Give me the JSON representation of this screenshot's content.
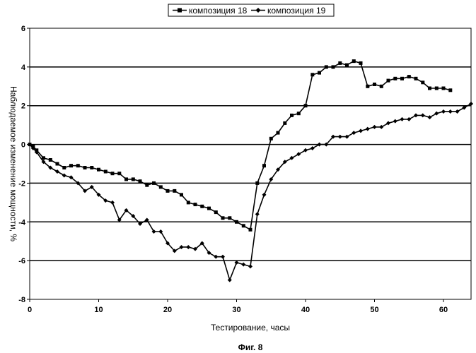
{
  "caption": "Фиг. 8",
  "chart_data": {
    "type": "line",
    "xlabel": "Тестирование, часы",
    "ylabel": "Наблюдаемое изменение мощности, %",
    "xlim": [
      0,
      64
    ],
    "ylim": [
      -8,
      6
    ],
    "xticks": [
      0,
      10,
      20,
      30,
      40,
      50,
      60
    ],
    "yticks": [
      -8,
      -6,
      -4,
      -2,
      0,
      2,
      4,
      6
    ],
    "ytick_labels": [
      "-8",
      "-6",
      "-4",
      "-2",
      "0",
      "2",
      "4",
      "6"
    ],
    "xtick_labels": [
      "0",
      "10",
      "20",
      "30",
      "40",
      "50",
      "60"
    ],
    "grid": "horizontal",
    "legend": "top-center",
    "series": [
      {
        "name": "композиция 18",
        "marker": "square",
        "color": "#000000",
        "x": [
          0,
          0.5,
          1,
          2,
          3,
          4,
          5,
          6,
          7,
          8,
          9,
          10,
          11,
          12,
          13,
          14,
          15,
          16,
          17,
          18,
          19,
          20,
          21,
          22,
          23,
          24,
          25,
          26,
          27,
          28,
          29,
          30,
          31,
          32,
          33,
          34,
          35,
          36,
          37,
          38,
          39,
          40,
          41,
          42,
          43,
          44,
          45,
          46,
          47,
          48,
          49,
          50,
          51,
          52,
          53,
          54,
          55,
          56,
          57,
          58,
          59,
          60,
          61
        ],
        "y": [
          0,
          -0.1,
          -0.3,
          -0.7,
          -0.8,
          -1.0,
          -1.2,
          -1.1,
          -1.1,
          -1.2,
          -1.2,
          -1.3,
          -1.4,
          -1.5,
          -1.5,
          -1.8,
          -1.8,
          -1.9,
          -2.1,
          -2.0,
          -2.2,
          -2.4,
          -2.4,
          -2.6,
          -3.0,
          -3.1,
          -3.2,
          -3.3,
          -3.5,
          -3.8,
          -3.8,
          -4.0,
          -4.2,
          -4.4,
          -2.0,
          -1.1,
          0.3,
          0.6,
          1.1,
          1.5,
          1.6,
          2.0,
          3.6,
          3.7,
          4.0,
          4.0,
          4.2,
          4.1,
          4.3,
          4.2,
          3.0,
          3.1,
          3.0,
          3.3,
          3.4,
          3.4,
          3.5,
          3.4,
          3.2,
          2.9,
          2.9,
          2.9,
          2.8
        ]
      },
      {
        "name": "композиция 19",
        "marker": "diamond",
        "color": "#000000",
        "x": [
          0,
          0.5,
          1,
          2,
          3,
          4,
          5,
          6,
          7,
          8,
          9,
          10,
          11,
          12,
          13,
          14,
          15,
          16,
          17,
          18,
          19,
          20,
          21,
          22,
          23,
          24,
          25,
          26,
          27,
          28,
          29,
          30,
          31,
          32,
          33,
          34,
          35,
          36,
          37,
          38,
          39,
          40,
          41,
          42,
          43,
          44,
          45,
          46,
          47,
          48,
          49,
          50,
          51,
          52,
          53,
          54,
          55,
          56,
          57,
          58,
          59,
          60,
          61,
          62,
          63,
          64
        ],
        "y": [
          0,
          -0.2,
          -0.4,
          -0.9,
          -1.2,
          -1.4,
          -1.6,
          -1.7,
          -2.0,
          -2.4,
          -2.2,
          -2.6,
          -2.9,
          -3.0,
          -3.9,
          -3.4,
          -3.7,
          -4.1,
          -3.9,
          -4.5,
          -4.5,
          -5.1,
          -5.5,
          -5.3,
          -5.3,
          -5.4,
          -5.1,
          -5.6,
          -5.8,
          -5.8,
          -7.0,
          -6.1,
          -6.2,
          -6.3,
          -3.6,
          -2.6,
          -1.8,
          -1.3,
          -0.9,
          -0.7,
          -0.5,
          -0.3,
          -0.2,
          0.0,
          0.0,
          0.4,
          0.4,
          0.4,
          0.6,
          0.7,
          0.8,
          0.9,
          0.9,
          1.1,
          1.2,
          1.3,
          1.3,
          1.5,
          1.5,
          1.4,
          1.6,
          1.7,
          1.7,
          1.7,
          1.9,
          2.1
        ]
      }
    ]
  }
}
